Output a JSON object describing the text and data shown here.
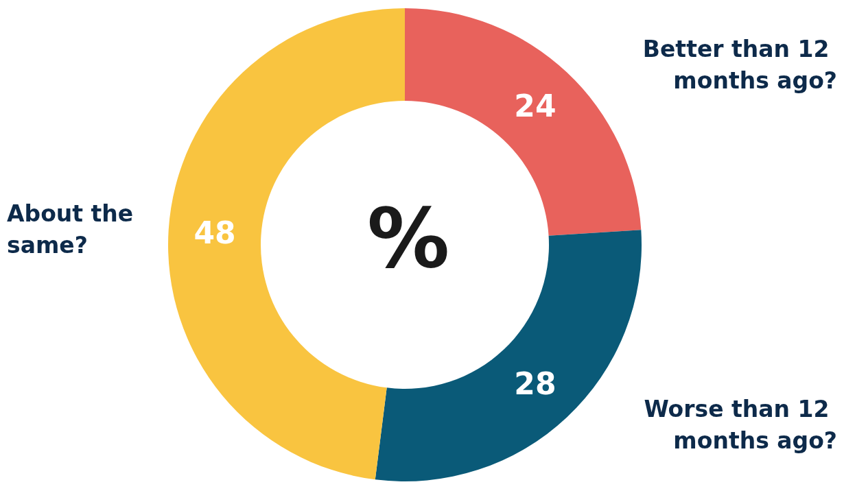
{
  "chart_data": {
    "type": "donut",
    "title": "%",
    "categories": [
      "Better than 12 months ago?",
      "Worse than 12 months ago?",
      "About the same?"
    ],
    "values": [
      24,
      28,
      48
    ],
    "colors": [
      "#e8625c",
      "#0a5a78",
      "#f9c440"
    ],
    "data_labels": true,
    "legend": false
  }
}
